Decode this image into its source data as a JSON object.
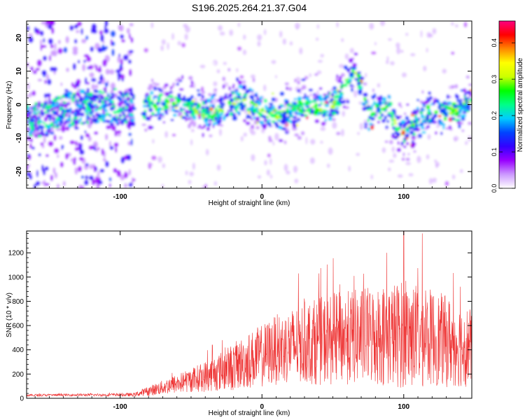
{
  "title": "S196.2025.264.21.37.G04",
  "chart_data": [
    {
      "type": "heatmap",
      "xlabel": "Height of straight line (km)",
      "ylabel": "Frequency (Hz)",
      "xlim": [
        -166,
        148
      ],
      "ylim": [
        -25,
        25
      ],
      "xticks": [
        -100,
        0,
        100
      ],
      "yticks": [
        -20,
        -10,
        0,
        10,
        20
      ],
      "colorbar": {
        "label": "Normalized spectral amplitude",
        "range": [
          0.0,
          0.46
        ],
        "ticks": [
          "0.0",
          "0.1",
          "0.2",
          "0.3",
          "0.4"
        ],
        "tick_values": [
          0.0,
          0.1,
          0.2,
          0.3,
          0.4
        ],
        "colors": [
          "#ffffff",
          "#cc99ff",
          "#9900ff",
          "#3300ff",
          "#0044ff",
          "#00ccff",
          "#00ff88",
          "#00ff00",
          "#ccff00",
          "#ffff00",
          "#ff8800",
          "#ff0000",
          "#ff0080"
        ]
      },
      "ridge": {
        "x": [
          -166,
          -150,
          -140,
          -130,
          -110,
          -90,
          -80,
          -70,
          -60,
          -50,
          -40,
          -30,
          -20,
          -10,
          0,
          10,
          20,
          30,
          40,
          50,
          55,
          60,
          65,
          70,
          75,
          80,
          90,
          100,
          110,
          120,
          130,
          140,
          148
        ],
        "freq": [
          -5,
          -4,
          -2,
          -1,
          0,
          -1,
          0,
          0,
          1,
          0,
          -3,
          -2,
          1,
          1,
          -2,
          -3,
          -2,
          0,
          -1,
          0,
          2,
          7,
          10,
          6,
          -3,
          -1,
          -2,
          -9,
          -5,
          -2,
          -3,
          -1,
          1
        ]
      },
      "data_gap": [
        -90,
        -83
      ]
    },
    {
      "type": "line",
      "xlabel": "Height of straight line (km)",
      "ylabel": "SNR (10 * v/v)",
      "xlim": [
        -166,
        148
      ],
      "ylim": [
        0,
        1380
      ],
      "xticks": [
        -100,
        0,
        100
      ],
      "yticks": [
        0,
        200,
        400,
        600,
        800,
        1000,
        1200
      ],
      "series_color": "#ee3333",
      "envelope": {
        "x": [
          -166,
          -130,
          -110,
          -90,
          -80,
          -70,
          -60,
          -50,
          -40,
          -30,
          -20,
          -10,
          0,
          10,
          20,
          30,
          40,
          50,
          60,
          70,
          80,
          90,
          100,
          110,
          120,
          130,
          140,
          148
        ],
        "mean": [
          25,
          28,
          28,
          30,
          60,
          90,
          120,
          150,
          180,
          220,
          260,
          310,
          350,
          400,
          430,
          460,
          470,
          490,
          500,
          510,
          520,
          520,
          530,
          510,
          500,
          470,
          440,
          420
        ],
        "spread": [
          10,
          10,
          12,
          15,
          40,
          60,
          80,
          100,
          130,
          160,
          200,
          230,
          260,
          290,
          310,
          340,
          360,
          380,
          390,
          400,
          420,
          430,
          450,
          430,
          400,
          380,
          350,
          330
        ]
      },
      "peaks": [
        {
          "x": -35,
          "y": 440
        },
        {
          "x": -28,
          "y": 480
        },
        {
          "x": 40,
          "y": 1030
        },
        {
          "x": 55,
          "y": 940
        },
        {
          "x": 65,
          "y": 1010
        },
        {
          "x": 88,
          "y": 1200
        },
        {
          "x": 100,
          "y": 1380
        },
        {
          "x": 113,
          "y": 1360
        },
        {
          "x": 140,
          "y": 920
        }
      ]
    }
  ]
}
